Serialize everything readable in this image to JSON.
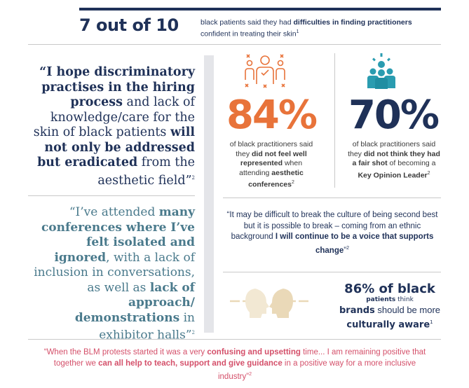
{
  "header": {
    "headline": "7 out of 10",
    "text_a": "black patients said they had ",
    "text_b": "difficulties in finding practitioners",
    "text_c": " confident in treating their skin",
    "sup": "1"
  },
  "quote1": {
    "t1": "“I hope discriminatory practises in the hiring process",
    "t2": " and lack of knowledge/care for the skin of black patients ",
    "t3": "will not only be addressed but eradicated",
    "t4": " from the aesthetic field”",
    "sup": "2"
  },
  "quote2": {
    "t1": "“I’ve attended ",
    "t2": "many conferences where I’ve felt isolated and ignored",
    "t3": ", with a lack of inclusion in conversations, as well as ",
    "t4": "lack of approach/ demonstrations",
    "t5": " in exhibitor halls”",
    "sup": "2"
  },
  "stat84": {
    "value": "84%",
    "t1": "of black practitioners said they ",
    "t2": "did not feel well represented",
    "t3": " when attending ",
    "t4": "aesthetic conferences",
    "sup": "2",
    "color": "#e8733a"
  },
  "stat70": {
    "value": "70%",
    "t1": "of black practitioners said they ",
    "t2": "did not think they had a fair shot",
    "t3": " of becoming a ",
    "t4": "Key Opinion Leader",
    "sup": "2",
    "color": "#1f3158"
  },
  "quote3": {
    "t1": "“It may be difficult to break the culture of being second best but it is possible to break – coming from an ethnic background ",
    "t2": "I will continue to be a voice that supports change",
    "t3": "”",
    "sup": "2"
  },
  "stat86": {
    "value": "86% of black",
    "t1": "patients",
    "t2": " think ",
    "t3": "brands",
    "t4": " should be more ",
    "t5": "culturally aware",
    "sup": "1"
  },
  "quote4": {
    "t1": "“When the BLM protests started it was a very ",
    "t2": "confusing and upsetting",
    "t3": " time... I am remaining positive that together we ",
    "t4": "can all help to teach, support and give guidance",
    "t5": " in a positive way for a more inclusive industry”",
    "sup": "2"
  },
  "icons": [
    "people-cross-icon",
    "team-idea-icon",
    "two-heads-icon"
  ],
  "colors": {
    "navy": "#1f3158",
    "orange": "#e8733a",
    "teal": "#4a7a8c",
    "pink": "#d4506a",
    "grey": "#e4e5e9"
  }
}
